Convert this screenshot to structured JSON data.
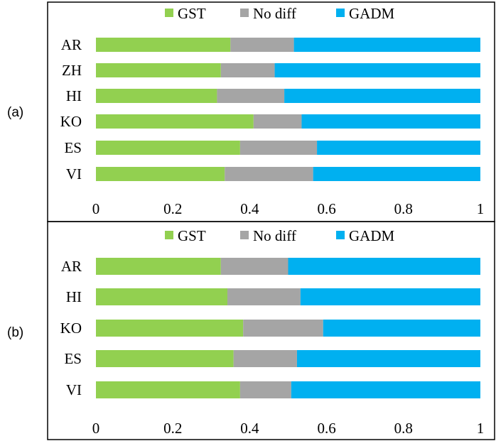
{
  "panels": [
    {
      "label": "(a)"
    },
    {
      "label": "(b)"
    }
  ],
  "chart_data": [
    {
      "type": "bar",
      "orientation": "horizontal",
      "stacked": true,
      "categories": [
        "AR",
        "ZH",
        "HI",
        "KO",
        "ES",
        "VI"
      ],
      "series": [
        {
          "name": "GST",
          "color": "#92d050",
          "values": [
            0.35,
            0.325,
            0.315,
            0.41,
            0.375,
            0.335
          ]
        },
        {
          "name": "No diff",
          "color": "#a5a5a5",
          "values": [
            0.165,
            0.14,
            0.175,
            0.125,
            0.2,
            0.23
          ]
        },
        {
          "name": "GADM",
          "color": "#00b0f0",
          "values": [
            0.485,
            0.535,
            0.51,
            0.465,
            0.425,
            0.435
          ]
        }
      ],
      "xticks": [
        "0",
        "0.2",
        "0.4",
        "0.6",
        "0.8",
        "1"
      ],
      "xlim": [
        0,
        1
      ],
      "legend": "top",
      "grid": false
    },
    {
      "type": "bar",
      "orientation": "horizontal",
      "stacked": true,
      "categories": [
        "AR",
        "HI",
        "KO",
        "ES",
        "VI"
      ],
      "series": [
        {
          "name": "GST",
          "color": "#92d050",
          "values": [
            0.325,
            0.342,
            0.383,
            0.358,
            0.375
          ]
        },
        {
          "name": "No diff",
          "color": "#a5a5a5",
          "values": [
            0.175,
            0.19,
            0.208,
            0.165,
            0.133
          ]
        },
        {
          "name": "GADM",
          "color": "#00b0f0",
          "values": [
            0.5,
            0.468,
            0.409,
            0.477,
            0.492
          ]
        }
      ],
      "xticks": [
        "0",
        "0.2",
        "0.4",
        "0.6",
        "0.8",
        "1"
      ],
      "xlim": [
        0,
        1
      ],
      "legend": "top",
      "grid": false
    }
  ]
}
